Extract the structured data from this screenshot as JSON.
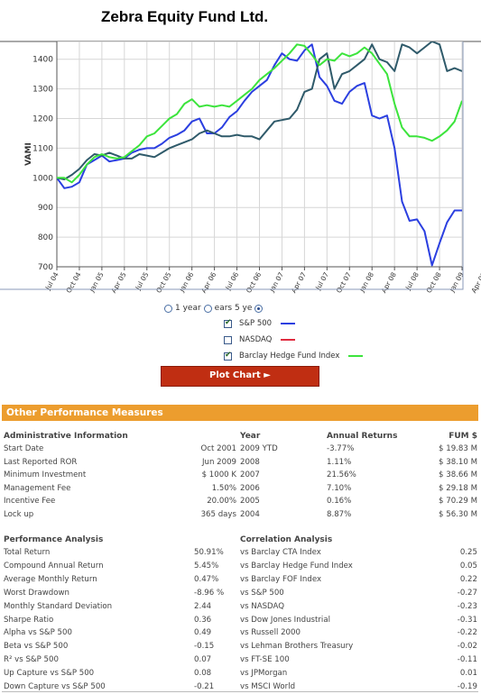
{
  "page_title": "Zebra Equity Fund Ltd.",
  "chart_data": {
    "type": "line",
    "ylabel": "VAMI",
    "ylim": [
      700,
      1460
    ],
    "yticks": [
      700,
      800,
      900,
      1000,
      1100,
      1200,
      1300,
      1400
    ],
    "xticks": [
      "Jul 04",
      "Oct 04",
      "Jan 05",
      "Apr 05",
      "Jul 05",
      "Oct 05",
      "Jan 06",
      "Apr 06",
      "Jul 06",
      "Oct 06",
      "Jan 07",
      "Apr 07",
      "Jul 07",
      "Oct 07",
      "Jan 08",
      "Apr 08",
      "Jul 08",
      "Oct 08",
      "Jan 09",
      "Apr 09"
    ],
    "x_start": "2004-06",
    "x_end": "2009-06",
    "grid": true,
    "series": [
      {
        "name": "S&P 500",
        "color": "#2b3fe0",
        "values": [
          1000,
          965,
          970,
          985,
          1045,
          1060,
          1075,
          1055,
          1060,
          1065,
          1085,
          1095,
          1100,
          1100,
          1115,
          1135,
          1145,
          1160,
          1190,
          1200,
          1150,
          1150,
          1170,
          1205,
          1225,
          1260,
          1290,
          1310,
          1330,
          1380,
          1420,
          1400,
          1395,
          1430,
          1450,
          1340,
          1310,
          1260,
          1250,
          1290,
          1310,
          1320,
          1210,
          1200,
          1210,
          1100,
          920,
          855,
          860,
          820,
          705,
          780,
          850,
          890,
          890
        ]
      },
      {
        "name": "Zebra Equity Fund Ltd.",
        "color": "#2f5a6a",
        "values": [
          1000,
          995,
          1010,
          1030,
          1060,
          1080,
          1075,
          1085,
          1075,
          1065,
          1065,
          1080,
          1075,
          1070,
          1085,
          1100,
          1110,
          1120,
          1130,
          1150,
          1160,
          1150,
          1140,
          1140,
          1145,
          1140,
          1140,
          1130,
          1160,
          1190,
          1195,
          1200,
          1230,
          1290,
          1300,
          1400,
          1420,
          1300,
          1350,
          1360,
          1380,
          1400,
          1450,
          1400,
          1390,
          1360,
          1450,
          1440,
          1420,
          1440,
          1460,
          1450,
          1360,
          1370,
          1360
        ]
      },
      {
        "name": "Barclay Hedge Fund Index",
        "color": "#3ce43c",
        "values": [
          1000,
          1000,
          985,
          1010,
          1045,
          1070,
          1080,
          1070,
          1065,
          1070,
          1090,
          1110,
          1140,
          1150,
          1175,
          1200,
          1215,
          1250,
          1265,
          1240,
          1245,
          1240,
          1245,
          1240,
          1260,
          1280,
          1300,
          1330,
          1350,
          1370,
          1395,
          1420,
          1450,
          1445,
          1415,
          1380,
          1400,
          1395,
          1420,
          1410,
          1420,
          1440,
          1420,
          1385,
          1350,
          1250,
          1170,
          1140,
          1140,
          1135,
          1125,
          1140,
          1160,
          1190,
          1260
        ]
      }
    ]
  },
  "controls": {
    "period_options": [
      "1 year",
      "3 years",
      "5 years"
    ],
    "period_visible_text": "1 year",
    "period_overlap_text": "ears  5 ye",
    "period_selected": "5 years",
    "series_toggles": [
      {
        "label": "S&P 500",
        "checked": true,
        "color": "#2b3fe0"
      },
      {
        "label": "NASDAQ",
        "checked": false,
        "color": "#e02b3f"
      },
      {
        "label": "Barclay Hedge Fund Index",
        "checked": true,
        "color": "#3ce43c"
      }
    ],
    "plot_button": "Plot Chart ►"
  },
  "section_title": "Other Performance Measures",
  "admin": {
    "header": "Administrative Information",
    "rows": [
      {
        "label": "Start Date",
        "value": "Oct 2001"
      },
      {
        "label": "Last Reported ROR",
        "value": "Jun 2009"
      },
      {
        "label": "Minimum Investment",
        "value": "$ 1000 K"
      },
      {
        "label": "Management Fee",
        "value": "1.50%"
      },
      {
        "label": "Incentive Fee",
        "value": "20.00%"
      },
      {
        "label": "Lock up",
        "value": "365 days"
      }
    ]
  },
  "annual": {
    "year_header": "Year",
    "returns_header": "Annual Returns",
    "fum_header": "FUM $",
    "rows": [
      {
        "year": "2009 YTD",
        "ret": "-3.77%",
        "fum": "$ 19.83 M"
      },
      {
        "year": "2008",
        "ret": "1.11%",
        "fum": "$ 38.10 M"
      },
      {
        "year": "2007",
        "ret": "21.56%",
        "fum": "$ 38.66 M"
      },
      {
        "year": "2006",
        "ret": "7.10%",
        "fum": "$ 29.18 M"
      },
      {
        "year": "2005",
        "ret": "0.16%",
        "fum": "$ 70.29 M"
      },
      {
        "year": "2004",
        "ret": "8.87%",
        "fum": "$ 56.30 M"
      }
    ]
  },
  "performance": {
    "header": "Performance Analysis",
    "rows": [
      {
        "label": "Total Return",
        "value": "50.91%"
      },
      {
        "label": "Compound Annual Return",
        "value": "5.45%"
      },
      {
        "label": "Average Monthly Return",
        "value": "0.47%"
      },
      {
        "label": "Worst Drawdown",
        "value": "-8.96 %"
      },
      {
        "label": "Monthly Standard Deviation",
        "value": "2.44"
      },
      {
        "label": "Sharpe Ratio",
        "value": "0.36"
      },
      {
        "label": "Alpha vs S&P 500",
        "value": "0.49"
      },
      {
        "label": "Beta vs S&P 500",
        "value": "-0.15"
      },
      {
        "label": "R² vs S&P 500",
        "value": "0.07"
      },
      {
        "label": "Up Capture vs S&P 500",
        "value": "0.08"
      },
      {
        "label": "Down Capture vs S&P 500",
        "value": "-0.21"
      }
    ]
  },
  "correlation": {
    "header": "Correlation Analysis",
    "rows": [
      {
        "label": "vs Barclay CTA Index",
        "value": "0.25"
      },
      {
        "label": "vs Barclay Hedge Fund Index",
        "value": "0.05"
      },
      {
        "label": "vs Barclay FOF Index",
        "value": "0.22"
      },
      {
        "label": "vs S&P 500",
        "value": "-0.27"
      },
      {
        "label": "vs NASDAQ",
        "value": "-0.23"
      },
      {
        "label": "vs Dow Jones Industrial",
        "value": "-0.31"
      },
      {
        "label": "vs Russell 2000",
        "value": "-0.22"
      },
      {
        "label": "vs Lehman Brothers Treasury",
        "value": "-0.02"
      },
      {
        "label": "vs FT-SE 100",
        "value": "-0.11"
      },
      {
        "label": "vs JPMorgan",
        "value": "0.01"
      },
      {
        "label": "vs MSCI World",
        "value": "-0.19"
      }
    ]
  }
}
